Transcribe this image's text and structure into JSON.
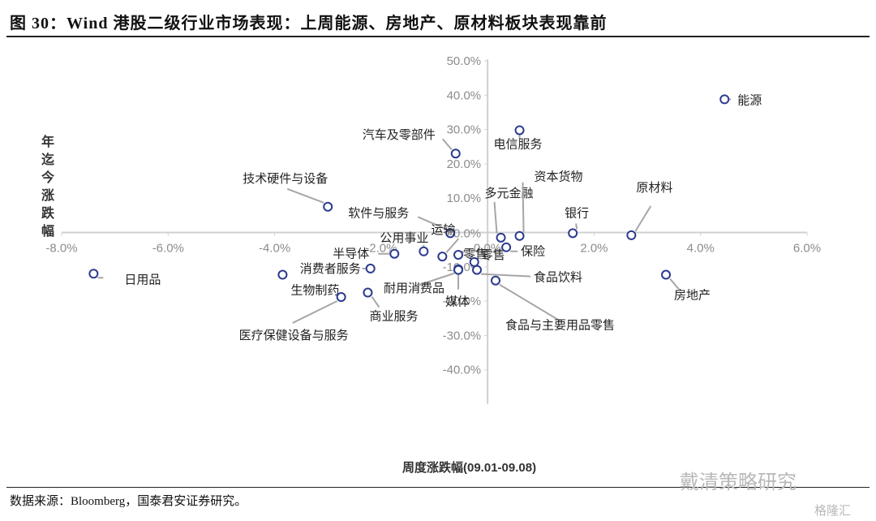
{
  "header": {
    "title": "图 30：Wind 港股二级行业市场表现：上周能源、房地产、原材料板块表现靠前"
  },
  "footer": {
    "source": "数据来源：Bloomberg，国泰君安证券研究。",
    "watermark": "戴清策略研究",
    "watermark2": "格隆汇"
  },
  "chart_data": {
    "type": "scatter",
    "xlabel": "周度涨跌幅(09.01-09.08)",
    "ylabel": "年迄今涨跌幅",
    "xlim": [
      -8,
      6
    ],
    "ylim": [
      -50,
      50
    ],
    "x_ticks": [
      "-8.0%",
      "-6.0%",
      "-4.0%",
      "-2.0%",
      "0.0%",
      "2.0%",
      "4.0%",
      "6.0%"
    ],
    "y_ticks": [
      "50.0%",
      "40.0%",
      "30.0%",
      "20.0%",
      "10.0%",
      "0.0%",
      "-10.0%",
      "-20.0%",
      "-30.0%",
      "-40.0%"
    ],
    "grid": false,
    "marker_color": "#2b3a8f",
    "leader_color": "#a6a6a6",
    "points": [
      {
        "label": "能源",
        "x": 4.45,
        "y": 38.8
      },
      {
        "label": "电信服务",
        "x": 0.6,
        "y": 29.8
      },
      {
        "label": "汽车及零部件",
        "x": -0.6,
        "y": 23.0
      },
      {
        "label": "技术硬件与设备",
        "x": -3.0,
        "y": 7.5
      },
      {
        "label": "软件与服务",
        "x": -0.7,
        "y": -0.2
      },
      {
        "label": "多元金融",
        "x": 0.25,
        "y": -1.5
      },
      {
        "label": "资本货物",
        "x": 0.6,
        "y": -1.0
      },
      {
        "label": "银行",
        "x": 1.6,
        "y": -0.2
      },
      {
        "label": "原材料",
        "x": 2.7,
        "y": -0.8
      },
      {
        "label": "保险",
        "x": 0.35,
        "y": -4.3
      },
      {
        "label": "公用事业",
        "x": -1.2,
        "y": -5.5
      },
      {
        "label": "运输",
        "x": -0.85,
        "y": -7.0
      },
      {
        "label": "半导体",
        "x": -1.75,
        "y": -6.2
      },
      {
        "label": "零售",
        "x": -0.55,
        "y": -6.5
      },
      {
        "label": "零售",
        "x": -0.25,
        "y": -8.6
      },
      {
        "label": "消费者服务",
        "x": -2.2,
        "y": -10.5
      },
      {
        "label": "耐用消费品",
        "x": -0.55,
        "y": -10.7
      },
      {
        "label": "媒体",
        "x": -0.55,
        "y": -10.9
      },
      {
        "label": "食品饮料",
        "x": -0.2,
        "y": -10.9
      },
      {
        "label": "日用品",
        "x": -7.4,
        "y": -12.0
      },
      {
        "label": "生物制药",
        "x": -3.85,
        "y": -12.3
      },
      {
        "label": "房地产",
        "x": 3.35,
        "y": -12.3
      },
      {
        "label": "食品与主要用品零售",
        "x": 0.15,
        "y": -14.0
      },
      {
        "label": "商业服务",
        "x": -2.25,
        "y": -17.5
      },
      {
        "label": "医疗保健设备与服务",
        "x": -2.75,
        "y": -18.8
      }
    ]
  }
}
